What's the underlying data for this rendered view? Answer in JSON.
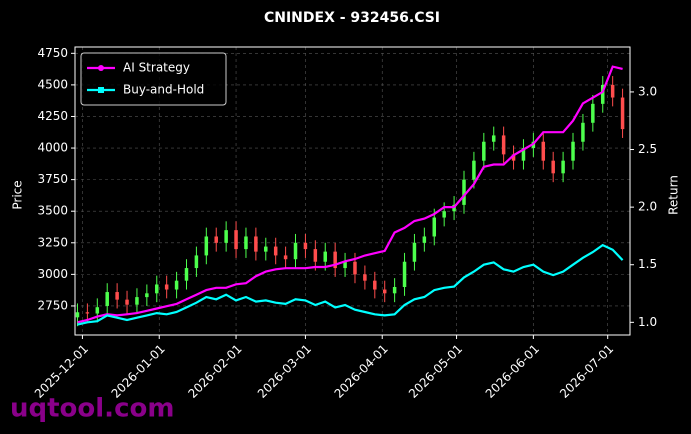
{
  "chart_data": {
    "type": "candlestick",
    "title": "CNINDEX - 932456.CSI",
    "ylabel": "Price",
    "y2label": "Return",
    "watermark": "uqtool.com",
    "x": [
      "2025-11-29",
      "2025-12-03",
      "2025-12-07",
      "2025-12-11",
      "2025-12-15",
      "2025-12-19",
      "2025-12-23",
      "2025-12-27",
      "2025-12-31",
      "2026-01-04",
      "2026-01-08",
      "2026-01-12",
      "2026-01-16",
      "2026-01-20",
      "2026-01-24",
      "2026-01-28",
      "2026-02-01",
      "2026-02-05",
      "2026-02-09",
      "2026-02-13",
      "2026-02-17",
      "2026-02-21",
      "2026-02-25",
      "2026-03-01",
      "2026-03-05",
      "2026-03-09",
      "2026-03-13",
      "2026-03-17",
      "2026-03-21",
      "2026-03-25",
      "2026-03-29",
      "2026-04-02",
      "2026-04-06",
      "2026-04-10",
      "2026-04-14",
      "2026-04-18",
      "2026-04-22",
      "2026-04-26",
      "2026-04-30",
      "2026-05-04",
      "2026-05-08",
      "2026-05-12",
      "2026-05-16",
      "2026-05-20",
      "2026-05-24",
      "2026-05-28",
      "2026-06-01",
      "2026-06-05",
      "2026-06-09",
      "2026-06-13",
      "2026-06-17",
      "2026-06-21",
      "2026-06-25",
      "2026-06-29",
      "2026-07-03",
      "2026-07-07"
    ],
    "open": [
      2660,
      2700,
      2690,
      2750,
      2860,
      2800,
      2760,
      2820,
      2850,
      2920,
      2880,
      2950,
      3050,
      3150,
      3300,
      3250,
      3350,
      3200,
      3300,
      3180,
      3220,
      3150,
      3120,
      3250,
      3200,
      3100,
      3180,
      3050,
      3100,
      3000,
      2950,
      2880,
      2850,
      2900,
      3100,
      3250,
      3300,
      3450,
      3500,
      3550,
      3750,
      3900,
      4050,
      4100,
      3950,
      3900,
      4000,
      4050,
      3900,
      3800,
      3900,
      4050,
      4200,
      4350,
      4500,
      4400
    ],
    "high": [
      2770,
      2770,
      2810,
      2930,
      2930,
      2870,
      2890,
      2920,
      2990,
      2990,
      3020,
      3120,
      3220,
      3370,
      3370,
      3420,
      3420,
      3370,
      3370,
      3290,
      3290,
      3220,
      3320,
      3320,
      3270,
      3250,
      3250,
      3170,
      3170,
      3070,
      3020,
      2950,
      2970,
      3170,
      3320,
      3370,
      3520,
      3570,
      3620,
      3820,
      3970,
      4120,
      4170,
      4170,
      4020,
      4070,
      4120,
      4120,
      3970,
      3970,
      4120,
      4270,
      4420,
      4570,
      4570,
      4470
    ],
    "low": [
      2590,
      2620,
      2620,
      2680,
      2730,
      2690,
      2690,
      2750,
      2780,
      2810,
      2810,
      2880,
      2980,
      3080,
      3180,
      3180,
      3130,
      3130,
      3110,
      3110,
      3080,
      3050,
      3050,
      3130,
      3030,
      3030,
      2980,
      2980,
      2930,
      2880,
      2810,
      2780,
      2780,
      2830,
      3030,
      3180,
      3230,
      3380,
      3430,
      3480,
      3680,
      3830,
      3980,
      3880,
      3830,
      3830,
      3930,
      3830,
      3730,
      3730,
      3830,
      3980,
      4130,
      4280,
      4330,
      4080
    ],
    "close": [
      2700,
      2690,
      2740,
      2860,
      2800,
      2760,
      2820,
      2850,
      2920,
      2880,
      2950,
      3050,
      3150,
      3300,
      3250,
      3350,
      3200,
      3300,
      3180,
      3220,
      3150,
      3120,
      3250,
      3200,
      3100,
      3180,
      3050,
      3100,
      3000,
      2950,
      2880,
      2850,
      2900,
      3100,
      3250,
      3300,
      3450,
      3500,
      3550,
      3750,
      3900,
      4050,
      4100,
      3950,
      3900,
      4000,
      4050,
      3900,
      3800,
      3900,
      4050,
      4200,
      4350,
      4500,
      4400,
      4150
    ],
    "up_color": "#4dff4d",
    "down_color": "#ff4d4d",
    "series": [
      {
        "name": "AI Strategy",
        "color": "#ff00ff",
        "axis": "y2",
        "values": [
          1.0,
          1.02,
          1.05,
          1.07,
          1.06,
          1.07,
          1.08,
          1.1,
          1.12,
          1.14,
          1.16,
          1.2,
          1.24,
          1.28,
          1.3,
          1.3,
          1.33,
          1.34,
          1.4,
          1.44,
          1.46,
          1.47,
          1.47,
          1.47,
          1.48,
          1.48,
          1.5,
          1.53,
          1.55,
          1.58,
          1.6,
          1.62,
          1.78,
          1.82,
          1.88,
          1.9,
          1.94,
          2.0,
          2.0,
          2.1,
          2.2,
          2.35,
          2.37,
          2.37,
          2.45,
          2.5,
          2.55,
          2.65,
          2.65,
          2.65,
          2.75,
          2.9,
          2.95,
          3.0,
          3.22,
          3.2
        ]
      },
      {
        "name": "Buy-and-Hold",
        "color": "#00ffff",
        "axis": "y2",
        "values": [
          0.98,
          1.0,
          1.01,
          1.06,
          1.04,
          1.02,
          1.04,
          1.06,
          1.08,
          1.07,
          1.09,
          1.13,
          1.17,
          1.22,
          1.2,
          1.24,
          1.19,
          1.22,
          1.18,
          1.19,
          1.17,
          1.16,
          1.2,
          1.19,
          1.15,
          1.18,
          1.13,
          1.15,
          1.11,
          1.09,
          1.07,
          1.06,
          1.07,
          1.15,
          1.2,
          1.22,
          1.28,
          1.3,
          1.31,
          1.39,
          1.44,
          1.5,
          1.52,
          1.46,
          1.44,
          1.48,
          1.5,
          1.44,
          1.41,
          1.44,
          1.5,
          1.56,
          1.61,
          1.67,
          1.63,
          1.54
        ]
      }
    ],
    "xlim": [
      "2025-11-28",
      "2026-07-10"
    ],
    "xticks": [
      "2025-12-01",
      "2026-01-01",
      "2026-02-01",
      "2026-03-01",
      "2026-04-01",
      "2026-05-01",
      "2026-06-01",
      "2026-07-01"
    ],
    "ylim": [
      2520,
      4800
    ],
    "yticks": [
      2750,
      3000,
      3250,
      3500,
      3750,
      4000,
      4250,
      4500,
      4750
    ],
    "y2lim": [
      0.89,
      3.39
    ],
    "y2ticks": [
      {
        "value": 1,
        "label": "1.0"
      },
      1.5,
      {
        "value": 2,
        "label": "2.0"
      },
      2.5,
      {
        "value": 3,
        "label": "3.0"
      }
    ],
    "grid": true,
    "legend": "upper left"
  }
}
